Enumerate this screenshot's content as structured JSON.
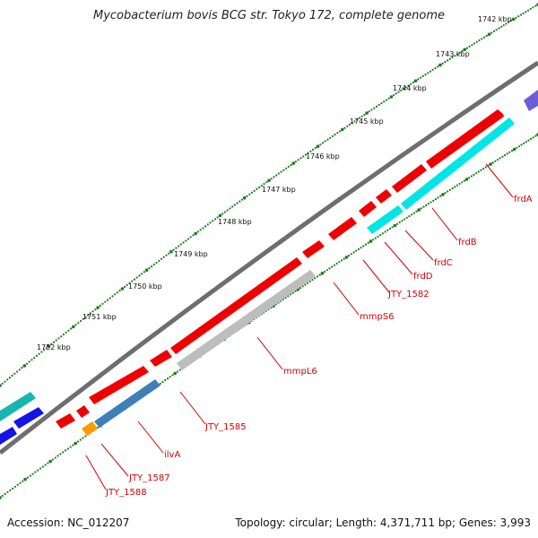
{
  "title": "Mycobacterium bovis BCG str. Tokyo 172, complete genome",
  "accession": "Accession: NC_012207",
  "summary": "Topology: circular; Length: 4,371,711 bp; Genes: 3,993",
  "colors": {
    "backbone": "#6e6e6e",
    "cds": "#ee0000",
    "ruler": "#1a7a1a",
    "label": "#d40000"
  },
  "ruler_labels": [
    "1742 kbp",
    "1743 kbp",
    "1744 kbp",
    "1745 kbp",
    "1746 kbp",
    "1747 kbp",
    "1748 kbp",
    "1749 kbp",
    "1750 kbp",
    "1751 kbp",
    "1752 kbp"
  ],
  "gene_labels": [
    "frdA",
    "frdB",
    "frdC",
    "frdD",
    "JTY_1582",
    "mmpS6",
    "mmpL6",
    "JTY_1585",
    "ilvA",
    "JTY_1587",
    "JTY_1588"
  ]
}
